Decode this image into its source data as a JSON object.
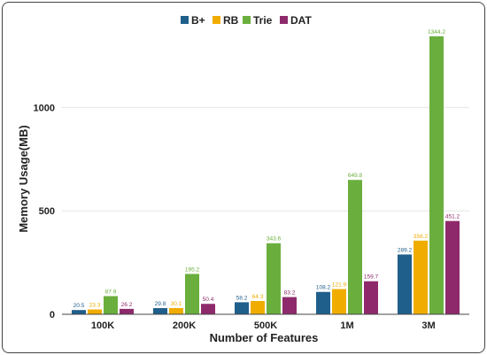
{
  "chart_data": {
    "type": "bar",
    "title": "",
    "xlabel": "Number of Features",
    "ylabel": "Memory Usage(MB)",
    "categories": [
      "100K",
      "200K",
      "500K",
      "1M",
      "3M"
    ],
    "series": [
      {
        "name": "B+",
        "color": "#1f5f8b",
        "values": [
          20.5,
          29.8,
          58.2,
          108.2,
          289.2
        ]
      },
      {
        "name": "RB",
        "color": "#f0ad00",
        "values": [
          23.3,
          30.1,
          64.3,
          121.9,
          356.2
        ]
      },
      {
        "name": "Trie",
        "color": "#6aaf3d",
        "values": [
          87.9,
          195.2,
          343.6,
          649.8,
          1344.2
        ]
      },
      {
        "name": "DAT",
        "color": "#8e2a6b",
        "values": [
          26.2,
          50.4,
          83.2,
          159.7,
          451.2
        ]
      }
    ],
    "value_labels": [
      [
        "20.5",
        "29.8",
        "58.2",
        "108.2",
        "289.2"
      ],
      [
        "23.3",
        "30.1",
        "64.3",
        "121.9",
        "356.2"
      ],
      [
        "87.9",
        "195.2",
        "343.6",
        "649.8",
        "1344.2"
      ],
      [
        "26.2",
        "50.4",
        "83.2",
        "159.7",
        "451.2"
      ]
    ],
    "yticks": [
      0,
      500,
      1000
    ],
    "ytick_labels": [
      "0",
      "500",
      "1000"
    ],
    "ylim": [
      0,
      1400
    ],
    "grid": "horizontal",
    "legend_position": "top-center"
  }
}
